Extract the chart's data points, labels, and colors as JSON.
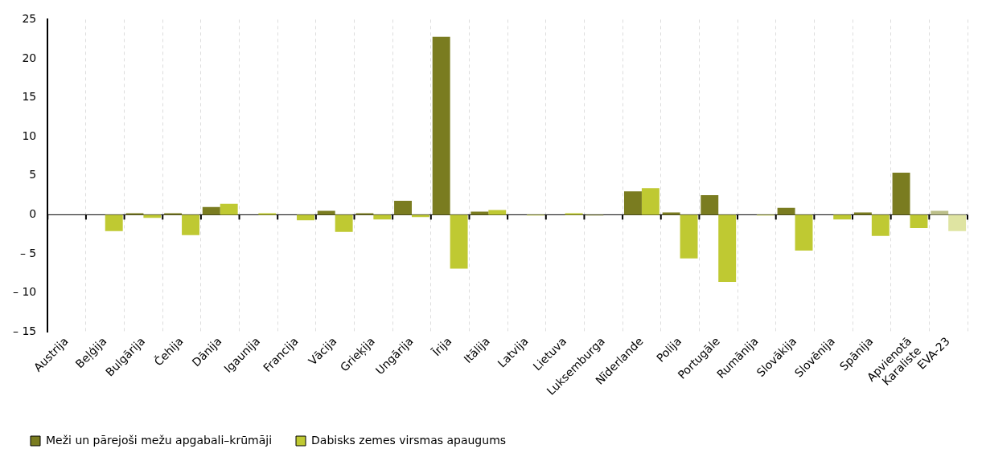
{
  "chart_data": {
    "type": "bar",
    "categories": [
      "Austrija",
      "Beļģija",
      "Bulgārija",
      "Čehija",
      "Dānija",
      "Igaunija",
      "Francija",
      "Vācija",
      "Grieķija",
      "Ungārija",
      "Īrija",
      "Itālija",
      "Latvija",
      "Lietuva",
      "Luksemburga",
      "Nīderlande",
      "Polija",
      "Portugāle",
      "Rumānija",
      "Slovākija",
      "Slovēnija",
      "Spānija",
      "Apvienotā Karaliste",
      "EVA-23"
    ],
    "series": [
      {
        "name": "Meži un pārejoši mežu apgabali–krūmāji",
        "color": "#7a7c20",
        "colors": [
          "#7a7c20",
          "#7a7c20",
          "#7a7c20",
          "#7a7c20",
          "#7a7c20",
          "#7a7c20",
          "#7a7c20",
          "#7a7c20",
          "#7a7c20",
          "#7a7c20",
          "#7a7c20",
          "#7a7c20",
          "#7a7c20",
          "#7a7c20",
          "#7a7c20",
          "#7a7c20",
          "#7a7c20",
          "#7a7c20",
          "#7a7c20",
          "#7a7c20",
          "#7a7c20",
          "#7a7c20",
          "#7a7c20",
          "#bcbf8a"
        ],
        "values": [
          0,
          0,
          0.2,
          0.2,
          1.0,
          0,
          0,
          0.5,
          0.2,
          1.8,
          22.8,
          0.4,
          0,
          0,
          -0.1,
          3.0,
          0.3,
          2.5,
          0,
          0.9,
          0,
          0.3,
          5.4,
          0.5
        ]
      },
      {
        "name": "Dabisks zemes virsmas apaugums",
        "color": "#bfc932",
        "colors": [
          "#bfc932",
          "#bfc932",
          "#bfc932",
          "#bfc932",
          "#bfc932",
          "#bfc932",
          "#bfc932",
          "#bfc932",
          "#bfc932",
          "#bfc932",
          "#bfc932",
          "#bfc932",
          "#bfc932",
          "#bfc932",
          "#bfc932",
          "#bfc932",
          "#bfc932",
          "#bfc932",
          "#bfc932",
          "#bfc932",
          "#bfc932",
          "#bfc932",
          "#bfc932",
          "#dfe4a2"
        ],
        "values": [
          0,
          -2.1,
          -0.4,
          -2.6,
          1.4,
          0.2,
          -0.7,
          -2.2,
          -0.6,
          -0.3,
          -6.9,
          0.6,
          -0.1,
          0.2,
          0,
          3.4,
          -5.6,
          -8.6,
          -0.1,
          -4.6,
          -0.6,
          -2.7,
          -1.7,
          -2.1
        ]
      }
    ],
    "ylim": [
      -15,
      25
    ],
    "yticks": [
      {
        "value": -15,
        "label": "– 15"
      },
      {
        "value": -10,
        "label": "– 10"
      },
      {
        "value": -5,
        "label": "– 5"
      },
      0,
      5,
      10,
      15,
      20,
      25
    ],
    "grid": "x",
    "legend": "bottom left"
  }
}
